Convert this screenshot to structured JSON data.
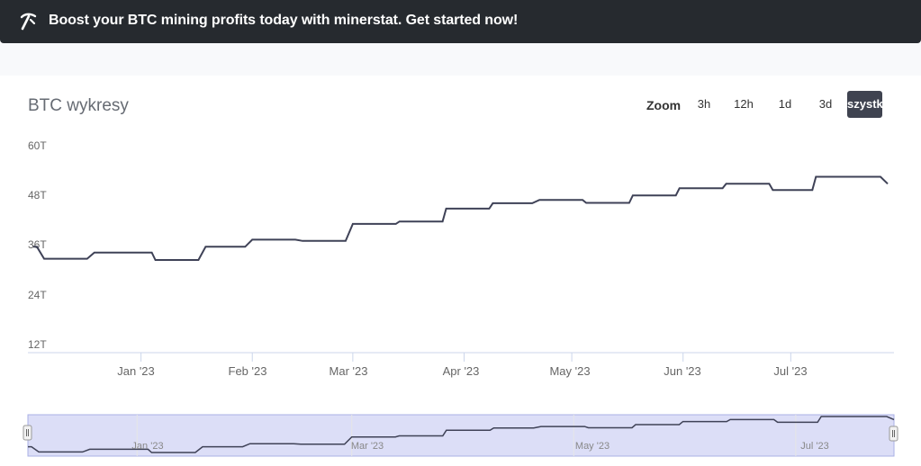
{
  "banner": {
    "text": "Boost your BTC mining profits today with minerstat. Get started now!",
    "icon": "pickaxe-icon"
  },
  "chart_title": "BTC wykresy",
  "zoom": {
    "label": "Zoom",
    "buttons": [
      "3h",
      "12h",
      "1d",
      "3d",
      "szystk"
    ],
    "active": "szystk"
  },
  "colors": {
    "line": "#3f4257",
    "active_button": "#3f4350",
    "navigator_fill": "#d3d6f5",
    "navigator_border": "#aab0e6"
  },
  "chart_data": {
    "type": "line",
    "title": "BTC wykresy",
    "y_ticks": [
      "60T",
      "48T",
      "36T",
      "24T",
      "12T"
    ],
    "ylim": [
      12,
      60
    ],
    "y_unit": "T",
    "x_ticks": [
      "Jan '23",
      "Feb '23",
      "Mar '23",
      "Apr '23",
      "May '23",
      "Jun '23",
      "Jul '23"
    ],
    "xlim": [
      "2022-12-02",
      "2023-07-28"
    ],
    "series": [
      {
        "points": [
          [
            "2022-12-02",
            35.4
          ],
          [
            "2022-12-03",
            35.4
          ],
          [
            "2022-12-05",
            32.5
          ],
          [
            "2022-12-17",
            32.5
          ],
          [
            "2022-12-19",
            34.0
          ],
          [
            "2023-01-04",
            34.0
          ],
          [
            "2023-01-05",
            32.2
          ],
          [
            "2023-01-17",
            32.2
          ],
          [
            "2023-01-19",
            35.4
          ],
          [
            "2023-01-30",
            35.4
          ],
          [
            "2023-02-01",
            37.1
          ],
          [
            "2023-02-13",
            37.1
          ],
          [
            "2023-02-15",
            36.8
          ],
          [
            "2023-02-27",
            36.8
          ],
          [
            "2023-03-01",
            40.9
          ],
          [
            "2023-03-13",
            40.9
          ],
          [
            "2023-03-14",
            41.5
          ],
          [
            "2023-03-26",
            41.5
          ],
          [
            "2023-03-27",
            44.6
          ],
          [
            "2023-04-08",
            44.6
          ],
          [
            "2023-04-09",
            45.9
          ],
          [
            "2023-04-20",
            45.9
          ],
          [
            "2023-04-22",
            46.7
          ],
          [
            "2023-05-04",
            46.7
          ],
          [
            "2023-05-05",
            46.0
          ],
          [
            "2023-05-17",
            46.0
          ],
          [
            "2023-05-18",
            47.8
          ],
          [
            "2023-05-30",
            47.8
          ],
          [
            "2023-05-31",
            49.5
          ],
          [
            "2023-06-12",
            49.5
          ],
          [
            "2023-06-13",
            50.6
          ],
          [
            "2023-06-25",
            50.6
          ],
          [
            "2023-06-26",
            49.1
          ],
          [
            "2023-07-07",
            49.1
          ],
          [
            "2023-07-08",
            52.3
          ],
          [
            "2023-07-26",
            52.3
          ],
          [
            "2023-07-28",
            50.6
          ]
        ]
      }
    ],
    "grid": "vertical at x ticks",
    "legend": "none",
    "navigator": {
      "labels": [
        "Jan '23",
        "Mar '23",
        "May '23",
        "Jul '23"
      ]
    }
  }
}
